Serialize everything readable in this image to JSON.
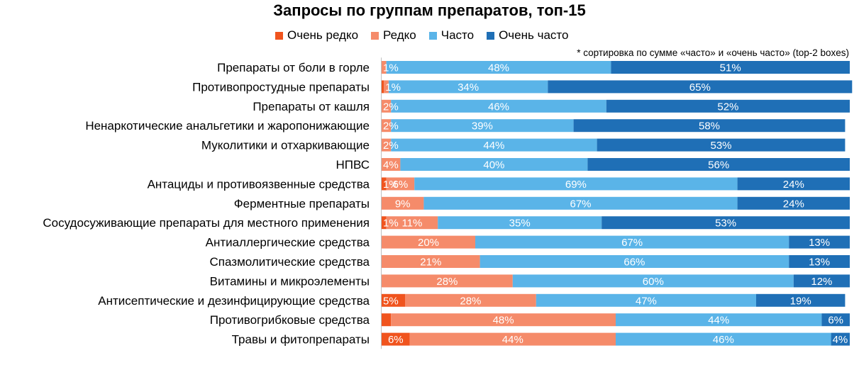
{
  "chart_data": {
    "type": "bar",
    "orientation": "horizontal",
    "stacked": true,
    "percent": true,
    "title": "Запросы по группам препаратов, топ-15",
    "note": "* сортировка по сумме «часто» и «очень часто» (top-2 boxes)",
    "legend_position": "top",
    "grid": false,
    "xlim": [
      0,
      100
    ],
    "colors": {
      "Очень редко": "#f0541e",
      "Редко": "#f58b6a",
      "Часто": "#5ab4e8",
      "Очень часто": "#1f6fb6"
    },
    "categories": [
      "Препараты от боли в горле",
      "Противопростудные препараты",
      "Препараты от кашля",
      "Ненаркотические анальгетики и жаропонижающие",
      "Муколитики и отхаркивающие",
      "НПВС",
      "Антациды и противоязвенные средства",
      "Ферментные препараты",
      "Сосудосуживающие препараты для местного применения",
      "Антиаллергические средства",
      "Спазмолитические средства",
      "Витамины и микроэлементы",
      "Антисептические и дезинфицирующие средства",
      "Противогрибковые средства",
      "Травы и фитопрепараты"
    ],
    "series": [
      {
        "name": "Очень редко",
        "color": "#f0541e",
        "values": [
          0,
          0.5,
          0,
          0,
          0,
          0,
          1,
          0,
          1,
          0,
          0,
          0,
          5,
          2,
          6
        ],
        "labels": [
          "",
          "",
          "",
          "",
          "",
          "",
          "1%",
          "",
          "1%",
          "",
          "",
          "",
          "5%",
          "",
          "6%"
        ]
      },
      {
        "name": "Редко",
        "color": "#f58b6a",
        "values": [
          1,
          1,
          2,
          2,
          2,
          4,
          6,
          9,
          11,
          20,
          21,
          28,
          28,
          48,
          44
        ],
        "labels": [
          "1%",
          "1%",
          "2%",
          "2%",
          "2%",
          "4%",
          "6%",
          "9%",
          "11%",
          "20%",
          "21%",
          "28%",
          "28%",
          "48%",
          "44%"
        ]
      },
      {
        "name": "Часто",
        "color": "#5ab4e8",
        "values": [
          48,
          34,
          46,
          39,
          44,
          40,
          69,
          67,
          35,
          67,
          66,
          60,
          47,
          44,
          46
        ],
        "labels": [
          "48%",
          "34%",
          "46%",
          "39%",
          "44%",
          "40%",
          "69%",
          "67%",
          "35%",
          "67%",
          "66%",
          "60%",
          "47%",
          "44%",
          "46%"
        ]
      },
      {
        "name": "Очень часто",
        "color": "#1f6fb6",
        "values": [
          51,
          65,
          52,
          58,
          53,
          56,
          24,
          24,
          53,
          13,
          13,
          12,
          19,
          6,
          4
        ],
        "labels": [
          "51%",
          "65%",
          "52%",
          "58%",
          "53%",
          "56%",
          "24%",
          "24%",
          "53%",
          "13%",
          "13%",
          "12%",
          "19%",
          "6%",
          "4%"
        ]
      }
    ]
  }
}
